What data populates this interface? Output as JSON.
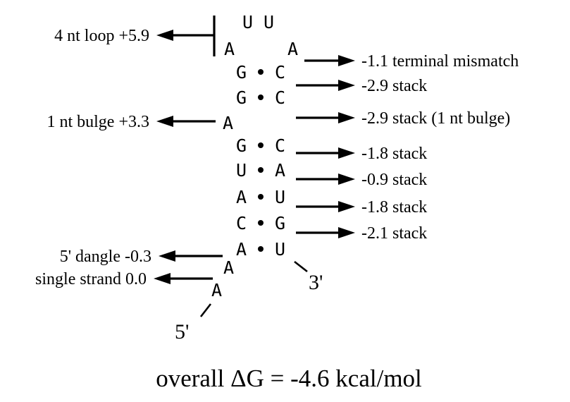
{
  "hairpin": {
    "loop_top": [
      "U",
      "U"
    ],
    "loop_left": "A",
    "loop_right": "A"
  },
  "pairs": [
    {
      "left": "G",
      "right": "C"
    },
    {
      "left": "G",
      "right": "C"
    },
    {
      "left": "G",
      "right": "C"
    },
    {
      "left": "U",
      "right": "A"
    },
    {
      "left": "A",
      "right": "U"
    },
    {
      "left": "C",
      "right": "G"
    },
    {
      "left": "A",
      "right": "U"
    }
  ],
  "bulge": "A",
  "tail": [
    "A",
    "A"
  ],
  "ends": {
    "five_prime": "5'",
    "three_prime": "3'"
  },
  "left_labels": {
    "loop": "4 nt loop +5.9",
    "bulge": "1 nt bulge +3.3",
    "dangle": "5' dangle -0.3",
    "single": "single strand 0.0"
  },
  "right_labels": [
    "-1.1 terminal mismatch",
    "-2.9 stack",
    "-2.9 stack (1 nt bulge)",
    "-1.8 stack",
    "-0.9 stack",
    "-1.8 stack",
    "-2.1 stack"
  ],
  "total": "overall ΔG = -4.6 kcal/mol"
}
